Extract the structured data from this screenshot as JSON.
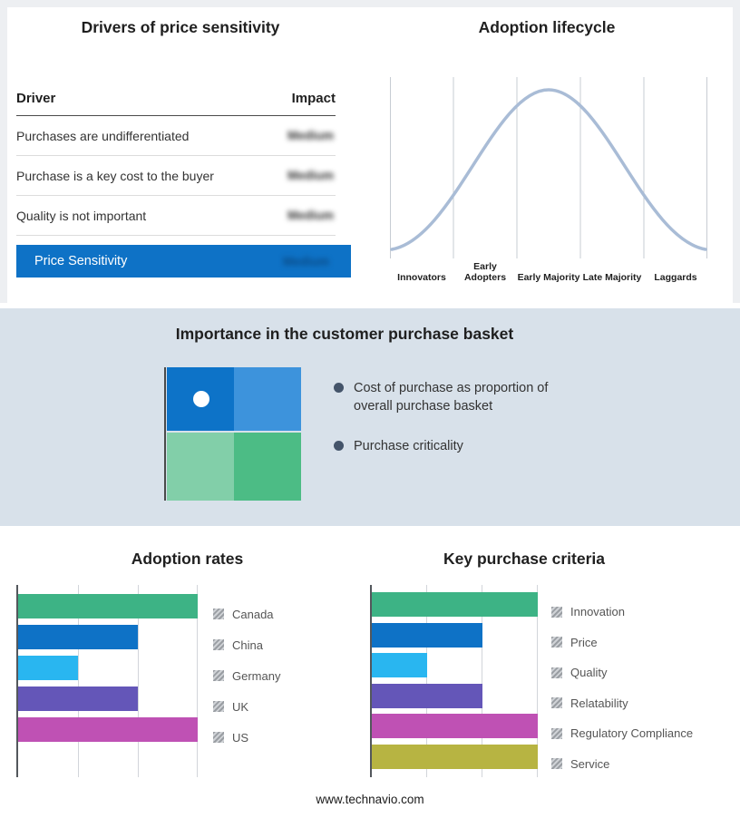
{
  "drivers": {
    "title": "Drivers of price sensitivity",
    "col_driver": "Driver",
    "col_impact": "Impact",
    "impact_values_blurred": true,
    "rows": [
      {
        "driver": "Purchases are undifferentiated",
        "impact": "Medium"
      },
      {
        "driver": "Purchase is a key cost to the buyer",
        "impact": "Medium"
      },
      {
        "driver": "Quality is not important",
        "impact": "Medium"
      }
    ],
    "summary": {
      "label": "Price Sensitivity",
      "impact": "Medium"
    },
    "accent_color": "#0e72c6"
  },
  "basket": {
    "title": "Importance in the customer purchase basket",
    "bullets": [
      "Cost of purchase as proportion of overall purchase basket",
      "Purchase criticality"
    ],
    "quadrant_colors": {
      "tl": "#0d73c8",
      "tr": "#3d93dc",
      "bl": "#82cfa9",
      "br": "#4cbc85"
    },
    "marker_color": "#44546a",
    "band_background": "#d8e1ea"
  },
  "footer": {
    "text": "www.technavio.com"
  },
  "chart_data": [
    {
      "type": "line",
      "shape": "bell-curve",
      "title": "Adoption lifecycle",
      "x": [
        "Innovators",
        "Early Adopters",
        "Early Majority",
        "Late Majority",
        "Laggards"
      ],
      "y_relative": [
        0.12,
        0.65,
        1.0,
        0.65,
        0.12
      ],
      "curve_color": "#a9bcd6",
      "grid": "vertical-only",
      "legend_position": "none"
    },
    {
      "type": "bar",
      "orientation": "horizontal",
      "title": "Adoption rates",
      "categories": [
        "Canada",
        "China",
        "Germany",
        "UK",
        "US"
      ],
      "values": [
        3,
        2,
        1,
        2,
        3
      ],
      "xlim": [
        0,
        3
      ],
      "colors": [
        "#3db385",
        "#0e72c6",
        "#29b6f0",
        "#6456b8",
        "#bf51b4"
      ],
      "grid": "vertical-only",
      "legend_position": "right"
    },
    {
      "type": "bar",
      "orientation": "horizontal",
      "title": "Key purchase criteria",
      "categories": [
        "Innovation",
        "Price",
        "Quality",
        "Relatability",
        "Regulatory Compliance",
        "Service"
      ],
      "values": [
        3,
        2,
        1,
        2,
        3,
        3
      ],
      "xlim": [
        0,
        3
      ],
      "colors": [
        "#3db385",
        "#0e72c6",
        "#29b6f0",
        "#6456b8",
        "#bf51b4",
        "#b7b442"
      ],
      "grid": "vertical-only",
      "legend_position": "right"
    }
  ]
}
